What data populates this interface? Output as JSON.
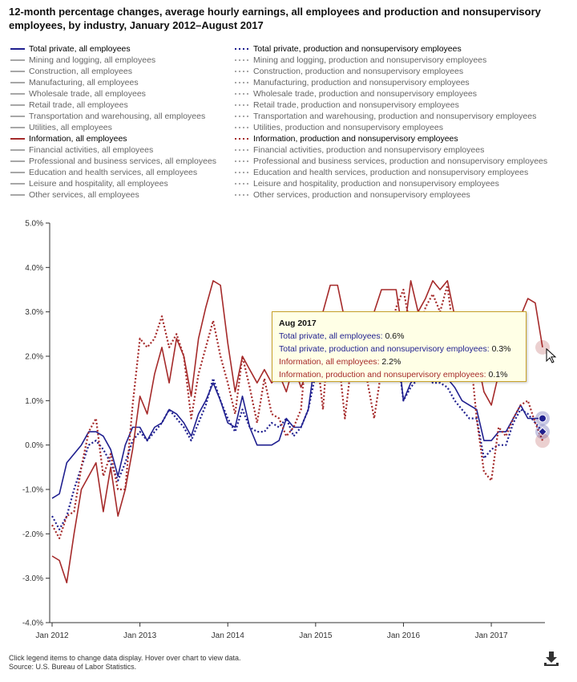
{
  "title": "12-month percentage changes, average hourly earnings, all employees and production and nonsupervisory employees, by industry, January 2012–August 2017",
  "footnote": {
    "line1": "Click legend items to change data display. Hover over chart to view data.",
    "line2": "Source: U.S. Bureau of Labor Statistics."
  },
  "legend": {
    "left": [
      {
        "label": "Total private, all employees",
        "style": "solid",
        "color": "#1f1f8f",
        "active": true
      },
      {
        "label": "Mining and logging, all employees",
        "style": "solid",
        "color": "#8a8a8a",
        "active": false
      },
      {
        "label": "Construction, all employees",
        "style": "solid",
        "color": "#8a8a8a",
        "active": false
      },
      {
        "label": "Manufacturing, all employees",
        "style": "solid",
        "color": "#8a8a8a",
        "active": false
      },
      {
        "label": "Wholesale trade, all employees",
        "style": "solid",
        "color": "#8a8a8a",
        "active": false
      },
      {
        "label": "Retail trade, all employees",
        "style": "solid",
        "color": "#8a8a8a",
        "active": false
      },
      {
        "label": "Transportation and warehousing, all employees",
        "style": "solid",
        "color": "#8a8a8a",
        "active": false
      },
      {
        "label": "Utilities, all employees",
        "style": "solid",
        "color": "#8a8a8a",
        "active": false
      },
      {
        "label": "Information, all employees",
        "style": "solid",
        "color": "#a52a2a",
        "active": true
      },
      {
        "label": "Financial activities, all employees",
        "style": "solid",
        "color": "#8a8a8a",
        "active": false
      },
      {
        "label": "Professional and business services, all employees",
        "style": "solid",
        "color": "#8a8a8a",
        "active": false
      },
      {
        "label": "Education and health services, all employees",
        "style": "solid",
        "color": "#8a8a8a",
        "active": false
      },
      {
        "label": "Leisure and hospitality, all employees",
        "style": "solid",
        "color": "#8a8a8a",
        "active": false
      },
      {
        "label": "Other services, all employees",
        "style": "solid",
        "color": "#8a8a8a",
        "active": false
      }
    ],
    "right": [
      {
        "label": "Total private, production and nonsupervisory employees",
        "style": "dotted",
        "color": "#1f1f8f",
        "active": true
      },
      {
        "label": "Mining and logging, production and nonsupervisory employees",
        "style": "dotted",
        "color": "#8a8a8a",
        "active": false
      },
      {
        "label": "Construction, production and nonsupervisory employees",
        "style": "dotted",
        "color": "#8a8a8a",
        "active": false
      },
      {
        "label": "Manufacturing, production and nonsupervisory employees",
        "style": "dotted",
        "color": "#8a8a8a",
        "active": false
      },
      {
        "label": "Wholesale trade, production and nonsupervisory employees",
        "style": "dotted",
        "color": "#8a8a8a",
        "active": false
      },
      {
        "label": "Retail trade, production and nonsupervisory employees",
        "style": "dotted",
        "color": "#8a8a8a",
        "active": false
      },
      {
        "label": "Transportation and warehousing, production and nonsupervisory employees",
        "style": "dotted",
        "color": "#8a8a8a",
        "active": false
      },
      {
        "label": "Utilities, production and nonsupervisory employees",
        "style": "dotted",
        "color": "#8a8a8a",
        "active": false
      },
      {
        "label": "Information, production and nonsupervisory employees",
        "style": "dotted",
        "color": "#a52a2a",
        "active": true
      },
      {
        "label": "Financial activities, production and nonsupervisory employees",
        "style": "dotted",
        "color": "#8a8a8a",
        "active": false
      },
      {
        "label": "Professional and business services, production and nonsupervisory employees",
        "style": "dotted",
        "color": "#8a8a8a",
        "active": false
      },
      {
        "label": "Education and health services, production and nonsupervisory employees",
        "style": "dotted",
        "color": "#8a8a8a",
        "active": false
      },
      {
        "label": "Leisure and hospitality, production and nonsupervisory employees",
        "style": "dotted",
        "color": "#8a8a8a",
        "active": false
      },
      {
        "label": "Other services, production and nonsupervisory employees",
        "style": "dotted",
        "color": "#8a8a8a",
        "active": false
      }
    ]
  },
  "tooltip": {
    "title": "Aug 2017",
    "rows": [
      {
        "label": "Total private, all employees",
        "value": "0.6%",
        "color": "#1f1f8f"
      },
      {
        "label": "Total private, production and nonsupervisory employees",
        "value": "0.3%",
        "color": "#1f1f8f"
      },
      {
        "label": "Information, all employees",
        "value": "2.2%",
        "color": "#a52a2a"
      },
      {
        "label": "Information, production and nonsupervisory employees",
        "value": "0.1%",
        "color": "#a52a2a"
      }
    ]
  },
  "download_icon": "download-icon",
  "chart_data": {
    "type": "line",
    "title": "12-month percentage changes, average hourly earnings, all employees and production and nonsupervisory employees, by industry, January 2012–August 2017",
    "xlabel": "",
    "ylabel": "",
    "ylim": [
      -4.0,
      5.0
    ],
    "y_ticks": [
      "5.0%",
      "4.0%",
      "3.0%",
      "2.0%",
      "1.0%",
      "0.0%",
      "-1.0%",
      "-2.0%",
      "-3.0%",
      "-4.0%"
    ],
    "x_start": "Jan 2012",
    "x_end": "Aug 2017",
    "x_ticks": [
      "Jan 2012",
      "Jan 2013",
      "Jan 2014",
      "Jan 2015",
      "Jan 2016",
      "Jan 2017"
    ],
    "grid": false,
    "highlighted_month": "Aug 2017",
    "series": [
      {
        "name": "Total private, all employees",
        "color": "#1f1f8f",
        "style": "solid",
        "values": [
          -1.2,
          -1.1,
          -0.4,
          -0.2,
          0.0,
          0.3,
          0.3,
          0.2,
          -0.1,
          -0.7,
          0.0,
          0.4,
          0.4,
          0.1,
          0.4,
          0.5,
          0.8,
          0.7,
          0.5,
          0.2,
          0.7,
          1.0,
          1.4,
          1.0,
          0.5,
          0.4,
          1.1,
          0.4,
          0.0,
          0.0,
          0.0,
          0.1,
          0.6,
          0.4,
          0.4,
          0.8,
          2.0,
          2.2,
          2.5,
          2.0,
          2.3,
          2.5,
          2.6,
          2.2,
          2.8,
          2.5,
          2.0,
          2.5,
          1.0,
          1.4,
          1.6,
          2.0,
          1.6,
          1.6,
          1.5,
          1.3,
          1.0,
          0.9,
          0.8,
          0.1,
          0.1,
          0.3,
          0.3,
          0.6,
          0.9,
          0.6,
          0.6,
          0.6
        ]
      },
      {
        "name": "Total private, production and nonsupervisory employees",
        "color": "#1f1f8f",
        "style": "dotted",
        "values": [
          -1.6,
          -1.9,
          -1.6,
          -1.0,
          -0.5,
          0.0,
          0.1,
          -0.1,
          -0.4,
          -0.8,
          -0.4,
          0.1,
          0.3,
          0.1,
          0.3,
          0.5,
          0.8,
          0.6,
          0.4,
          0.1,
          0.5,
          0.9,
          1.5,
          1.0,
          0.6,
          0.3,
          0.8,
          0.4,
          0.3,
          0.3,
          0.5,
          0.4,
          0.6,
          0.2,
          0.4,
          0.8,
          1.6,
          2.0,
          2.2,
          1.8,
          2.1,
          2.3,
          2.4,
          2.0,
          2.6,
          2.3,
          1.8,
          2.3,
          1.0,
          1.3,
          1.5,
          1.8,
          1.4,
          1.4,
          1.3,
          1.0,
          0.8,
          0.6,
          0.6,
          -0.3,
          -0.1,
          0.0,
          0.0,
          0.5,
          0.8,
          0.7,
          0.5,
          0.3
        ]
      },
      {
        "name": "Information, all employees",
        "color": "#a52a2a",
        "style": "solid",
        "values": [
          -2.5,
          -2.6,
          -3.1,
          -2.0,
          -1.0,
          -0.7,
          -0.4,
          -1.5,
          -0.5,
          -1.6,
          -1.0,
          -0.1,
          1.1,
          0.7,
          1.6,
          2.2,
          1.4,
          2.4,
          2.0,
          1.1,
          2.4,
          3.1,
          3.7,
          3.6,
          2.3,
          1.2,
          2.0,
          1.7,
          1.4,
          1.7,
          1.4,
          1.6,
          1.2,
          1.8,
          1.3,
          1.7,
          2.5,
          3.0,
          3.6,
          3.6,
          2.8,
          2.8,
          2.8,
          2.6,
          3.0,
          3.5,
          3.5,
          3.5,
          2.4,
          3.7,
          3.0,
          3.3,
          3.7,
          3.5,
          3.7,
          2.9,
          2.9,
          1.9,
          2.0,
          1.2,
          0.9,
          1.6,
          2.5,
          2.5,
          2.9,
          3.3,
          3.2,
          2.2
        ]
      },
      {
        "name": "Information, production and nonsupervisory employees",
        "color": "#a52a2a",
        "style": "dotted",
        "values": [
          -1.8,
          -2.1,
          -1.6,
          -1.5,
          -0.5,
          0.3,
          0.6,
          -0.7,
          -0.2,
          -1.0,
          -1.0,
          0.9,
          2.4,
          2.2,
          2.4,
          2.9,
          2.2,
          2.5,
          2.0,
          0.6,
          1.6,
          2.2,
          2.8,
          2.0,
          1.4,
          0.7,
          2.0,
          1.3,
          0.5,
          1.5,
          0.7,
          0.6,
          0.2,
          0.4,
          0.8,
          2.7,
          2.3,
          0.8,
          3.0,
          2.2,
          0.6,
          2.0,
          2.0,
          1.5,
          0.6,
          1.7,
          2.3,
          3.1,
          3.5,
          2.6,
          2.4,
          3.1,
          3.4,
          3.0,
          3.6,
          2.3,
          2.2,
          2.3,
          0.6,
          -0.6,
          -0.8,
          0.4,
          0.2,
          0.6,
          0.9,
          1.0,
          0.5,
          0.1
        ]
      }
    ]
  }
}
